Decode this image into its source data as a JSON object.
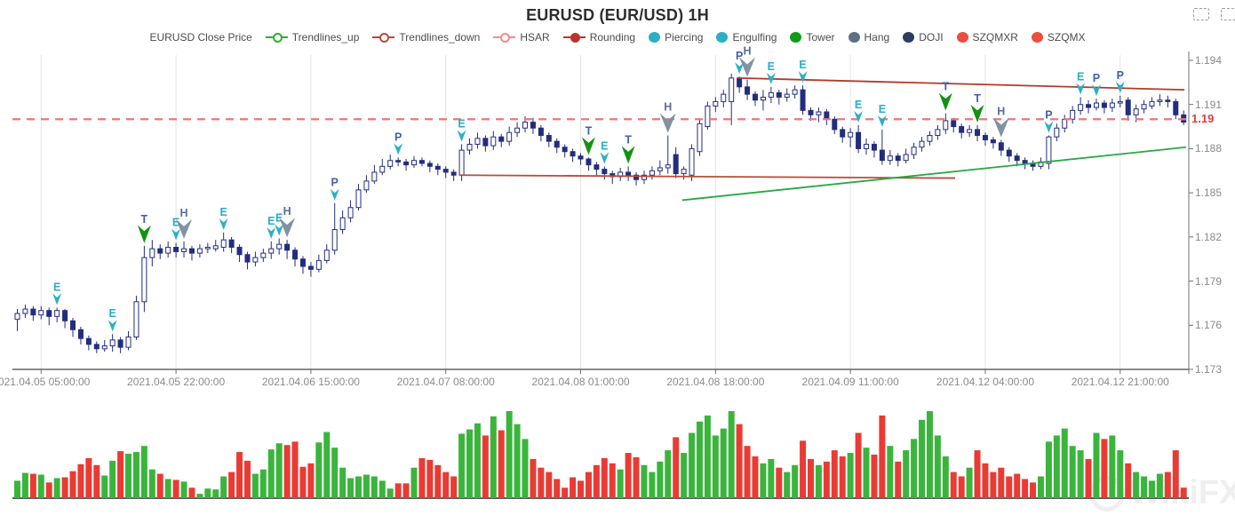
{
  "title": "EURUSD (EUR/USD) 1H",
  "watermark": "WikiFX",
  "toolbox": {
    "icons": [
      "zoom-select-icon",
      "restore-icon"
    ]
  },
  "legend": [
    {
      "label": "EURUSD Close Price",
      "symbol": "none",
      "color": "#4c4c4c"
    },
    {
      "label": "Trendlines_up",
      "symbol": "line-circle",
      "color": "#2fae33"
    },
    {
      "label": "Trendlines_down",
      "symbol": "line-circle",
      "color": "#bb4b38"
    },
    {
      "label": "HSAR",
      "symbol": "line-circle",
      "color": "#f58a90"
    },
    {
      "label": "Rounding",
      "symbol": "line-dot",
      "color": "#bc3430"
    },
    {
      "label": "Piercing",
      "symbol": "dot",
      "color": "#2ab0c5"
    },
    {
      "label": "Engulfing",
      "symbol": "dot",
      "color": "#2ab0c5"
    },
    {
      "label": "Tower",
      "symbol": "dot",
      "color": "#0e9c17"
    },
    {
      "label": "Hang",
      "symbol": "dot",
      "color": "#5c7081"
    },
    {
      "label": "DOJI",
      "symbol": "dot",
      "color": "#2c3e5e"
    },
    {
      "label": "SZQMXR",
      "symbol": "dot",
      "color": "#ea4f3d"
    },
    {
      "label": "SZQMX",
      "symbol": "dot",
      "color": "#ea4f3d"
    }
  ],
  "chart_data": {
    "type": "candlestick+volume",
    "symbol": "EURUSD",
    "timeframe": "1H",
    "y_ticks": [
      "1.194",
      "1.191",
      "1.188",
      "1.185",
      "1.182",
      "1.179",
      "1.176",
      "1.173"
    ],
    "y_range": [
      1.173,
      1.194
    ],
    "x_ticks": {
      "indices": [
        3,
        20,
        37,
        54,
        71,
        88,
        105,
        122,
        139
      ],
      "labels": [
        "2021.04.05 05:00:00",
        "2021.04.05 22:00:00",
        "2021.04.06 15:00:00",
        "2021.04.07 08:00:00",
        "2021.04.08 01:00:00",
        "2021.04.08 18:00:00",
        "2021.04.09 11:00:00",
        "2021.04.12 04:00:00",
        "2021.04.12 21:00:00"
      ]
    },
    "hsar_level": 1.19,
    "hsar_label": "1.19",
    "hsar_color": "#f2737f",
    "trendlines": [
      {
        "name": "trendline-down",
        "color": "#b03a2c",
        "b1": 90.8,
        "p1": 1.1928,
        "b2": 147.1,
        "p2": 1.192
      },
      {
        "name": "support-line",
        "color": "#b94a3a",
        "b1": 55.7,
        "p1": 1.1862,
        "b2": 118.2,
        "p2": 1.186
      },
      {
        "name": "trendline-up",
        "color": "#27a844",
        "b1": 83.8,
        "p1": 1.1845,
        "b2": 147.3,
        "p2": 1.1881
      }
    ],
    "candle_colors": {
      "up_fill": "#ffffff",
      "down_fill": "#232d7e",
      "stroke": "#232d7e"
    },
    "volume_colors": {
      "up": "#3ab53c",
      "down": "#e93b34"
    },
    "marker_styles": {
      "E": {
        "pattern": "Engulfing",
        "letter_color": "#29aec6",
        "arrow": "chevron-small",
        "arrow_color": "#2ab0c5"
      },
      "P": {
        "pattern": "Piercing",
        "letter_color": "#4060a8",
        "arrow": "chevron-small",
        "arrow_color": "#2ab0c5"
      },
      "T": {
        "pattern": "Tower",
        "letter_color": "#4060a8",
        "arrow": "kite-medium",
        "arrow_color": "#129312"
      },
      "H": {
        "pattern": "Hang",
        "letter_color": "#5a6f96",
        "arrow": "kite-large",
        "arrow_color": "#8292a2"
      }
    },
    "markers": [
      {
        "i": 5,
        "t": "E"
      },
      {
        "i": 12,
        "t": "E"
      },
      {
        "i": 16,
        "t": "T"
      },
      {
        "i": 20,
        "t": "E"
      },
      {
        "i": 21,
        "t": "H"
      },
      {
        "i": 26,
        "t": "E"
      },
      {
        "i": 32,
        "t": "E"
      },
      {
        "i": 33,
        "t": "E"
      },
      {
        "i": 34,
        "t": "H"
      },
      {
        "i": 40,
        "t": "P"
      },
      {
        "i": 48,
        "t": "P"
      },
      {
        "i": 56,
        "t": "E"
      },
      {
        "i": 72,
        "t": "T"
      },
      {
        "i": 74,
        "t": "E"
      },
      {
        "i": 77,
        "t": "T"
      },
      {
        "i": 82,
        "t": "H"
      },
      {
        "i": 91,
        "t": "P"
      },
      {
        "i": 92,
        "t": "H"
      },
      {
        "i": 95,
        "t": "E"
      },
      {
        "i": 99,
        "t": "E"
      },
      {
        "i": 106,
        "t": "E"
      },
      {
        "i": 109,
        "t": "E"
      },
      {
        "i": 117,
        "t": "T"
      },
      {
        "i": 121,
        "t": "T"
      },
      {
        "i": 124,
        "t": "H"
      },
      {
        "i": 130,
        "t": "P"
      },
      {
        "i": 134,
        "t": "E"
      },
      {
        "i": 136,
        "t": "P"
      },
      {
        "i": 139,
        "t": "P"
      }
    ],
    "candles": [
      [
        1.1764,
        1.1771,
        1.1756,
        1.1768,
        20
      ],
      [
        1.1768,
        1.1774,
        1.1765,
        1.1771,
        29
      ],
      [
        1.1771,
        1.1773,
        1.1763,
        1.1767,
        28
      ],
      [
        1.1767,
        1.1773,
        1.1764,
        1.177,
        27
      ],
      [
        1.177,
        1.1772,
        1.176,
        1.1766,
        18
      ],
      [
        1.1766,
        1.1772,
        1.1762,
        1.177,
        23
      ],
      [
        1.177,
        1.1771,
        1.1758,
        1.1763,
        24
      ],
      [
        1.1763,
        1.1765,
        1.1752,
        1.1757,
        31
      ],
      [
        1.1757,
        1.1759,
        1.1747,
        1.1751,
        39
      ],
      [
        1.1751,
        1.1753,
        1.1743,
        1.1747,
        46
      ],
      [
        1.1747,
        1.1749,
        1.1741,
        1.1744,
        38
      ],
      [
        1.1744,
        1.175,
        1.1742,
        1.1746,
        26
      ],
      [
        1.1746,
        1.1754,
        1.1742,
        1.175,
        43
      ],
      [
        1.175,
        1.1752,
        1.1741,
        1.1745,
        54
      ],
      [
        1.1745,
        1.1756,
        1.1743,
        1.1752,
        51
      ],
      [
        1.1752,
        1.178,
        1.175,
        1.1776,
        53
      ],
      [
        1.1776,
        1.1814,
        1.1769,
        1.1806,
        60
      ],
      [
        1.1806,
        1.1818,
        1.18,
        1.1812,
        33
      ],
      [
        1.1812,
        1.1815,
        1.1805,
        1.1809,
        28
      ],
      [
        1.1809,
        1.1817,
        1.1806,
        1.1813,
        22
      ],
      [
        1.1813,
        1.1816,
        1.1806,
        1.181,
        21
      ],
      [
        1.181,
        1.1817,
        1.1806,
        1.1812,
        19
      ],
      [
        1.1812,
        1.1814,
        1.1804,
        1.1809,
        12
      ],
      [
        1.1809,
        1.1815,
        1.1806,
        1.1812,
        5
      ],
      [
        1.1812,
        1.1816,
        1.1809,
        1.1813,
        11
      ],
      [
        1.1812,
        1.1818,
        1.181,
        1.1814,
        10
      ],
      [
        1.1813,
        1.1823,
        1.181,
        1.1818,
        25
      ],
      [
        1.1818,
        1.182,
        1.1809,
        1.1813,
        30
      ],
      [
        1.1813,
        1.1815,
        1.1803,
        1.1808,
        53
      ],
      [
        1.1808,
        1.181,
        1.1798,
        1.1803,
        43
      ],
      [
        1.1803,
        1.181,
        1.18,
        1.1806,
        28
      ],
      [
        1.1806,
        1.1812,
        1.1803,
        1.1809,
        33
      ],
      [
        1.1809,
        1.1817,
        1.1805,
        1.1812,
        56
      ],
      [
        1.1812,
        1.1819,
        1.1808,
        1.1815,
        63
      ],
      [
        1.1815,
        1.1818,
        1.1805,
        1.1811,
        61
      ],
      [
        1.1811,
        1.1813,
        1.18,
        1.1805,
        65
      ],
      [
        1.1805,
        1.1807,
        1.1795,
        1.18,
        36
      ],
      [
        1.18,
        1.1803,
        1.1793,
        1.1798,
        40
      ],
      [
        1.1798,
        1.1808,
        1.1796,
        1.1804,
        64
      ],
      [
        1.1804,
        1.1815,
        1.1802,
        1.1811,
        76
      ],
      [
        1.1811,
        1.1843,
        1.1808,
        1.1825,
        58
      ],
      [
        1.1825,
        1.1838,
        1.1822,
        1.1833,
        35
      ],
      [
        1.1833,
        1.1845,
        1.183,
        1.184,
        23
      ],
      [
        1.184,
        1.1856,
        1.1838,
        1.1852,
        25
      ],
      [
        1.1852,
        1.1862,
        1.185,
        1.1858,
        27
      ],
      [
        1.1858,
        1.1869,
        1.1856,
        1.1864,
        25
      ],
      [
        1.1864,
        1.1873,
        1.1862,
        1.1868,
        20
      ],
      [
        1.1868,
        1.1876,
        1.1866,
        1.1872,
        11
      ],
      [
        1.1872,
        1.1874,
        1.1868,
        1.1871,
        17
      ],
      [
        1.1871,
        1.1873,
        1.1865,
        1.1869,
        17
      ],
      [
        1.1869,
        1.1875,
        1.1867,
        1.1872,
        35
      ],
      [
        1.1872,
        1.1874,
        1.1868,
        1.187,
        46
      ],
      [
        1.187,
        1.1872,
        1.1864,
        1.1868,
        44
      ],
      [
        1.1868,
        1.187,
        1.1862,
        1.1866,
        38
      ],
      [
        1.1866,
        1.1868,
        1.186,
        1.1864,
        30
      ],
      [
        1.1864,
        1.1866,
        1.1858,
        1.1862,
        25
      ],
      [
        1.1862,
        1.1883,
        1.1858,
        1.1879,
        74
      ],
      [
        1.1879,
        1.1887,
        1.1876,
        1.1883,
        79
      ],
      [
        1.1883,
        1.1891,
        1.188,
        1.1887,
        86
      ],
      [
        1.1887,
        1.1889,
        1.1878,
        1.1882,
        72
      ],
      [
        1.1882,
        1.1892,
        1.1879,
        1.1888,
        94
      ],
      [
        1.1888,
        1.189,
        1.1881,
        1.1885,
        78
      ],
      [
        1.1885,
        1.1895,
        1.1882,
        1.1891,
        100
      ],
      [
        1.1891,
        1.1898,
        1.1888,
        1.1894,
        85
      ],
      [
        1.1894,
        1.1902,
        1.1891,
        1.1898,
        68
      ],
      [
        1.1898,
        1.1901,
        1.189,
        1.1894,
        45
      ],
      [
        1.1894,
        1.1896,
        1.1885,
        1.1889,
        35
      ],
      [
        1.1889,
        1.1891,
        1.1881,
        1.1885,
        30
      ],
      [
        1.1885,
        1.1887,
        1.1877,
        1.1881,
        22
      ],
      [
        1.1881,
        1.1883,
        1.1874,
        1.1878,
        12
      ],
      [
        1.1878,
        1.188,
        1.1871,
        1.1875,
        24
      ],
      [
        1.1875,
        1.1877,
        1.1869,
        1.1873,
        20
      ],
      [
        1.1873,
        1.1874,
        1.1865,
        1.1869,
        30
      ],
      [
        1.1869,
        1.1871,
        1.1862,
        1.1866,
        38
      ],
      [
        1.1866,
        1.1868,
        1.1859,
        1.1863,
        46
      ],
      [
        1.1863,
        1.1865,
        1.1856,
        1.1861,
        40
      ],
      [
        1.1861,
        1.1867,
        1.1858,
        1.1864,
        33
      ],
      [
        1.1864,
        1.1868,
        1.1858,
        1.1862,
        52
      ],
      [
        1.1862,
        1.1864,
        1.1855,
        1.1859,
        47
      ],
      [
        1.1859,
        1.1865,
        1.1856,
        1.1862,
        38
      ],
      [
        1.1862,
        1.1868,
        1.1859,
        1.1865,
        30
      ],
      [
        1.1865,
        1.1872,
        1.1862,
        1.1867,
        42
      ],
      [
        1.1867,
        1.1889,
        1.1863,
        1.1869,
        55
      ],
      [
        1.1876,
        1.1881,
        1.186,
        1.1863,
        70
      ],
      [
        1.1863,
        1.1868,
        1.1859,
        1.1866,
        52
      ],
      [
        1.1862,
        1.1883,
        1.1858,
        1.188,
        75
      ],
      [
        1.1878,
        1.19,
        1.1875,
        1.1897,
        88
      ],
      [
        1.1895,
        1.1912,
        1.1893,
        1.1909,
        95
      ],
      [
        1.1909,
        1.1915,
        1.1905,
        1.1912,
        72
      ],
      [
        1.1912,
        1.192,
        1.1908,
        1.1917,
        80
      ],
      [
        1.1912,
        1.1931,
        1.1896,
        1.1928,
        100
      ],
      [
        1.1928,
        1.1929,
        1.1918,
        1.1922,
        85
      ],
      [
        1.1922,
        1.1927,
        1.1913,
        1.1917,
        60
      ],
      [
        1.1917,
        1.1919,
        1.1909,
        1.1913,
        48
      ],
      [
        1.1913,
        1.192,
        1.1906,
        1.1915,
        40
      ],
      [
        1.1915,
        1.1922,
        1.1911,
        1.1918,
        45
      ],
      [
        1.1918,
        1.192,
        1.191,
        1.1915,
        35
      ],
      [
        1.1915,
        1.1921,
        1.1912,
        1.1917,
        30
      ],
      [
        1.1917,
        1.1923,
        1.1914,
        1.192,
        38
      ],
      [
        1.192,
        1.1923,
        1.1903,
        1.1906,
        66
      ],
      [
        1.1906,
        1.1908,
        1.1899,
        1.1903,
        45
      ],
      [
        1.1903,
        1.1908,
        1.1898,
        1.1905,
        38
      ],
      [
        1.1905,
        1.1907,
        1.1896,
        1.19,
        42
      ],
      [
        1.19,
        1.1902,
        1.189,
        1.1893,
        55
      ],
      [
        1.1893,
        1.1895,
        1.1884,
        1.1888,
        48
      ],
      [
        1.1888,
        1.1894,
        1.1881,
        1.1891,
        52
      ],
      [
        1.1891,
        1.1896,
        1.1877,
        1.188,
        75
      ],
      [
        1.188,
        1.1887,
        1.1876,
        1.1883,
        58
      ],
      [
        1.1883,
        1.1885,
        1.1874,
        1.1879,
        50
      ],
      [
        1.1879,
        1.1893,
        1.1869,
        1.1872,
        95
      ],
      [
        1.1872,
        1.1879,
        1.1869,
        1.1875,
        60
      ],
      [
        1.1875,
        1.1877,
        1.1868,
        1.1872,
        42
      ],
      [
        1.1872,
        1.188,
        1.187,
        1.1876,
        55
      ],
      [
        1.1876,
        1.1884,
        1.1873,
        1.1881,
        68
      ],
      [
        1.1881,
        1.1888,
        1.1878,
        1.1885,
        90
      ],
      [
        1.1885,
        1.1892,
        1.1882,
        1.1889,
        100
      ],
      [
        1.1889,
        1.1896,
        1.1886,
        1.1893,
        72
      ],
      [
        1.1893,
        1.1904,
        1.189,
        1.1899,
        48
      ],
      [
        1.1899,
        1.1901,
        1.1891,
        1.1895,
        30
      ],
      [
        1.1895,
        1.1897,
        1.1887,
        1.1891,
        25
      ],
      [
        1.1891,
        1.1896,
        1.1888,
        1.1893,
        35
      ],
      [
        1.1893,
        1.1896,
        1.1885,
        1.1889,
        55
      ],
      [
        1.1889,
        1.1891,
        1.1882,
        1.1886,
        40
      ],
      [
        1.1886,
        1.1888,
        1.188,
        1.1884,
        30
      ],
      [
        1.1884,
        1.1886,
        1.1875,
        1.1879,
        35
      ],
      [
        1.1879,
        1.1881,
        1.1871,
        1.1875,
        25
      ],
      [
        1.1875,
        1.1877,
        1.1868,
        1.1872,
        28
      ],
      [
        1.1872,
        1.1874,
        1.1866,
        1.187,
        22
      ],
      [
        1.187,
        1.1872,
        1.1865,
        1.1868,
        18
      ],
      [
        1.1868,
        1.1874,
        1.1866,
        1.1871,
        25
      ],
      [
        1.187,
        1.1889,
        1.1866,
        1.1888,
        65
      ],
      [
        1.1888,
        1.1897,
        1.1885,
        1.1894,
        72
      ],
      [
        1.1894,
        1.1903,
        1.1891,
        1.19,
        80
      ],
      [
        1.19,
        1.1909,
        1.1897,
        1.1906,
        60
      ],
      [
        1.1906,
        1.1915,
        1.1903,
        1.191,
        55
      ],
      [
        1.191,
        1.1913,
        1.1904,
        1.1908,
        45
      ],
      [
        1.1908,
        1.1914,
        1.1906,
        1.1911,
        75
      ],
      [
        1.1911,
        1.1913,
        1.1904,
        1.1908,
        68
      ],
      [
        1.1908,
        1.1914,
        1.1905,
        1.1911,
        72
      ],
      [
        1.1911,
        1.1916,
        1.1908,
        1.1912,
        55
      ],
      [
        1.1913,
        1.1915,
        1.1899,
        1.1903,
        40
      ],
      [
        1.1903,
        1.191,
        1.1898,
        1.1907,
        30
      ],
      [
        1.1907,
        1.1913,
        1.1904,
        1.191,
        25
      ],
      [
        1.1909,
        1.1915,
        1.1907,
        1.1912,
        20
      ],
      [
        1.1912,
        1.1917,
        1.1909,
        1.1913,
        28
      ],
      [
        1.1913,
        1.1916,
        1.1908,
        1.1912,
        30
      ],
      [
        1.1912,
        1.1914,
        1.19,
        1.1903,
        55
      ],
      [
        1.1903,
        1.1906,
        1.1896,
        1.1898,
        12
      ]
    ]
  }
}
